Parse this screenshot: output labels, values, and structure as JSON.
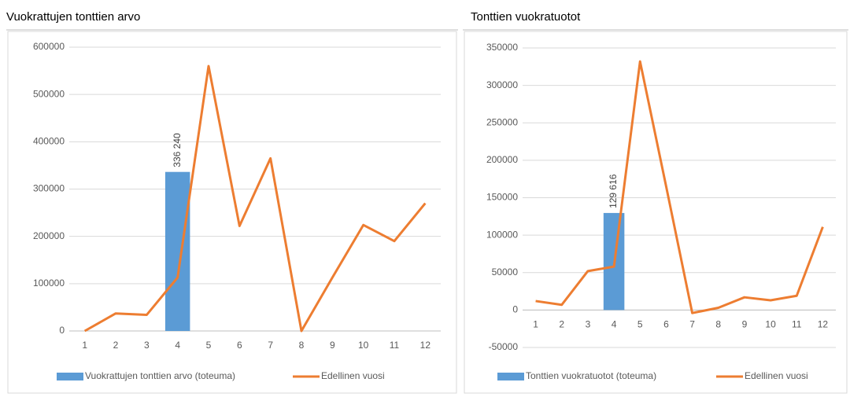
{
  "chart_data": [
    {
      "type": "combo",
      "title": "Vuokrattujen tonttien arvo",
      "categories": [
        "1",
        "2",
        "3",
        "4",
        "5",
        "6",
        "7",
        "8",
        "9",
        "10",
        "11",
        "12"
      ],
      "series": [
        {
          "name": "Vuokrattujen tonttien arvo (toteuma)",
          "type": "bar",
          "color": "#5b9bd5",
          "values": [
            null,
            null,
            null,
            336240,
            null,
            null,
            null,
            null,
            null,
            null,
            null,
            null
          ],
          "value_labels": [
            null,
            null,
            null,
            "336 240",
            null,
            null,
            null,
            null,
            null,
            null,
            null,
            null
          ]
        },
        {
          "name": "Edellinen vuosi",
          "type": "line",
          "color": "#ed7d31",
          "values": [
            0,
            37000,
            34000,
            113000,
            560000,
            222000,
            365000,
            0,
            113000,
            224000,
            190000,
            270000
          ]
        }
      ],
      "ylim": [
        0,
        600000
      ],
      "yticks": [
        0,
        100000,
        200000,
        300000,
        400000,
        500000,
        600000
      ],
      "grid": true,
      "legend": "bottom"
    },
    {
      "type": "combo",
      "title": "Tonttien vuokratuotot",
      "categories": [
        "1",
        "2",
        "3",
        "4",
        "5",
        "6",
        "7",
        "8",
        "9",
        "10",
        "11",
        "12"
      ],
      "series": [
        {
          "name": "Tonttien vuokratuotot (toteuma)",
          "type": "bar",
          "color": "#5b9bd5",
          "values": [
            null,
            null,
            null,
            129616,
            null,
            null,
            null,
            null,
            null,
            null,
            null,
            null
          ],
          "value_labels": [
            null,
            null,
            null,
            "129 616",
            null,
            null,
            null,
            null,
            null,
            null,
            null,
            null
          ]
        },
        {
          "name": "Edellinen vuosi",
          "type": "line",
          "color": "#ed7d31",
          "values": [
            12000,
            7000,
            52000,
            58000,
            332000,
            165000,
            -4000,
            3000,
            17000,
            13000,
            19000,
            111000
          ]
        }
      ],
      "ylim": [
        -50000,
        350000
      ],
      "yticks": [
        -50000,
        0,
        50000,
        100000,
        150000,
        200000,
        250000,
        300000,
        350000
      ],
      "grid": true,
      "legend": "bottom"
    }
  ]
}
